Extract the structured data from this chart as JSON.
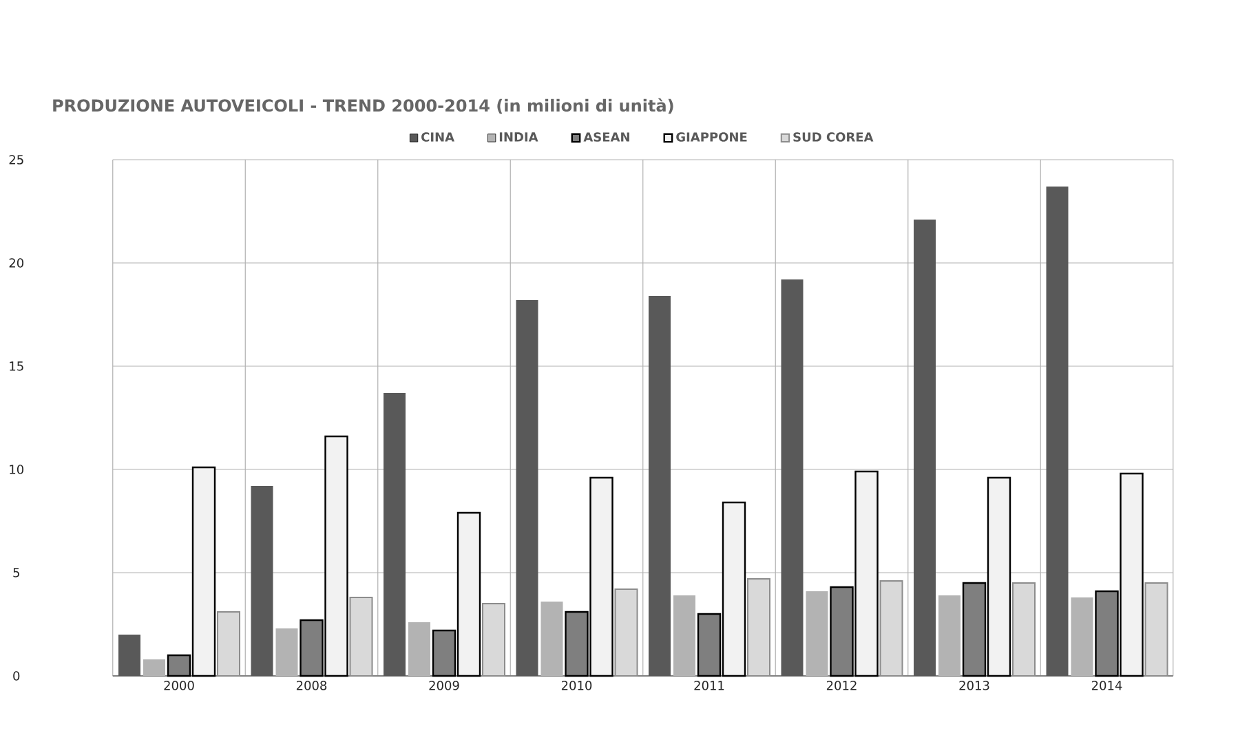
{
  "chart_data": {
    "type": "bar",
    "title": "PRODUZIONE AUTOVEICOLI - TREND 2000-2014 (in milioni di unità)",
    "categories": [
      "2000",
      "2008",
      "2009",
      "2010",
      "2011",
      "2012",
      "2013",
      "2014"
    ],
    "series": [
      {
        "name": "CINA",
        "color": "#595959",
        "values": [
          2.0,
          9.2,
          13.7,
          18.2,
          18.4,
          19.2,
          22.1,
          23.7
        ]
      },
      {
        "name": "INDIA",
        "color": "#b3b3b3",
        "values": [
          0.8,
          2.3,
          2.6,
          3.6,
          3.9,
          4.1,
          3.9,
          3.8
        ]
      },
      {
        "name": "ASEAN",
        "color": "#7f7f7f",
        "values": [
          1.0,
          2.7,
          2.2,
          3.1,
          3.0,
          4.3,
          4.5,
          4.1
        ]
      },
      {
        "name": "GIAPPONE",
        "color": "#f2f2f2",
        "values": [
          10.1,
          11.6,
          7.9,
          9.6,
          8.4,
          9.9,
          9.6,
          9.8
        ]
      },
      {
        "name": "SUD COREA",
        "color": "#d9d9d9",
        "values": [
          3.1,
          3.8,
          3.5,
          4.2,
          4.7,
          4.6,
          4.5,
          4.5
        ]
      }
    ],
    "ylim": [
      0,
      25
    ],
    "yticks": [
      0,
      5,
      10,
      15,
      20,
      25
    ],
    "grid": true,
    "legend": "top"
  }
}
